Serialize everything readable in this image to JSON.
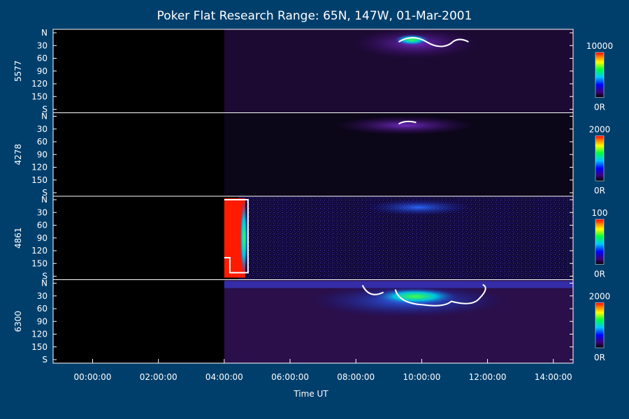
{
  "chart_data": {
    "type": "heatmap",
    "title": "Poker Flat Research Range: 65N, 147W, 01-Mar-2001",
    "xlabel": "Time UT",
    "x_ticks": [
      "00:00:00",
      "02:00:00",
      "04:00:00",
      "06:00:00",
      "08:00:00",
      "10:00:00",
      "12:00:00",
      "14:00:00"
    ],
    "x_tick_hours": [
      0,
      2,
      4,
      6,
      8,
      10,
      12,
      14
    ],
    "xlim_hours": [
      -1.2,
      14.6
    ],
    "y_ticks": [
      "N",
      "30",
      "60",
      "90",
      "120",
      "150",
      "S"
    ],
    "y_tick_values": [
      0,
      30,
      60,
      90,
      120,
      150,
      180
    ],
    "ylim": [
      0,
      180
    ],
    "data_start_hour": 4.0,
    "panels": [
      {
        "label": "5577",
        "colorbar_max": "10000",
        "colorbar_min": "0R"
      },
      {
        "label": "4278",
        "colorbar_max": "2000",
        "colorbar_min": "0R"
      },
      {
        "label": "4861",
        "colorbar_max": "100",
        "colorbar_min": "0R"
      },
      {
        "label": "6300",
        "colorbar_max": "2000",
        "colorbar_min": "0R"
      }
    ],
    "colors": {
      "background": "#003f6c",
      "plot_background": "#000000",
      "saturation": "#ff1a00",
      "contour": "#ffffff"
    }
  }
}
